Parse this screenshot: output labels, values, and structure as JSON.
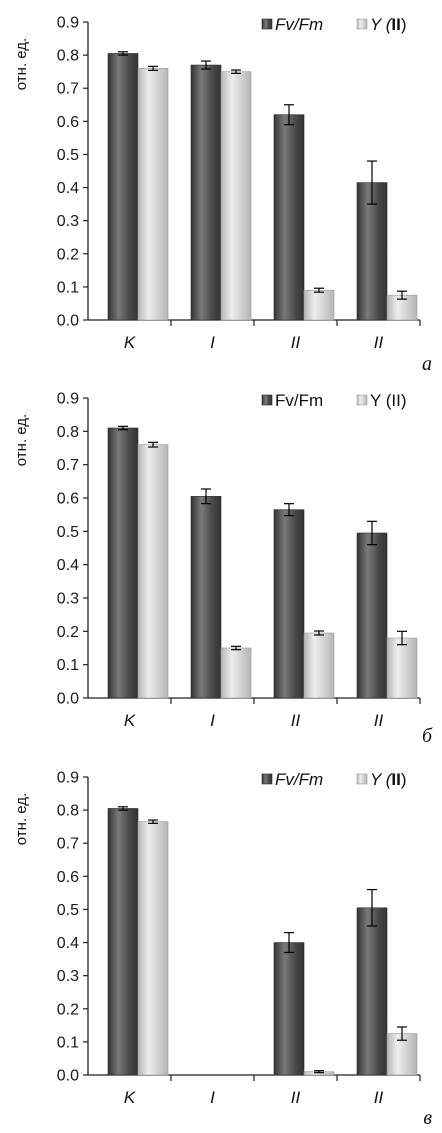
{
  "chart_data": [
    {
      "type": "bar",
      "panel_label": "а",
      "ylabel": "отн. ед.",
      "ylim": [
        0,
        0.9
      ],
      "yticks": [
        "0.0",
        "0.1",
        "0.2",
        "0.3",
        "0.4",
        "0.5",
        "0.6",
        "0.7",
        "0.8",
        "0.9"
      ],
      "categories": [
        "K",
        "I",
        "II",
        "II"
      ],
      "legend_position": "top-right",
      "series": [
        {
          "name": "Fv/Fm",
          "name_style": "italic",
          "color": "#555555",
          "values": [
            0.805,
            0.77,
            0.62,
            0.415
          ],
          "errors": [
            0.005,
            0.012,
            0.03,
            0.065
          ]
        },
        {
          "name": "Y (II)",
          "name_style": "italic-with-bold",
          "color": "#d0d0d0",
          "values": [
            0.76,
            0.75,
            0.09,
            0.075
          ],
          "errors": [
            0.006,
            0.005,
            0.006,
            0.012
          ]
        }
      ]
    },
    {
      "type": "bar",
      "panel_label": "б",
      "ylabel": "отн. ед.",
      "ylim": [
        0,
        0.9
      ],
      "yticks": [
        "0.0",
        "0.1",
        "0.2",
        "0.3",
        "0.4",
        "0.5",
        "0.6",
        "0.7",
        "0.8",
        "0.9"
      ],
      "categories": [
        "K",
        "I",
        "II",
        "II"
      ],
      "legend_position": "top-right",
      "series": [
        {
          "name": "Fv/Fm",
          "name_style": "regular",
          "color": "#555555",
          "values": [
            0.81,
            0.605,
            0.565,
            0.495
          ],
          "errors": [
            0.005,
            0.022,
            0.018,
            0.035
          ]
        },
        {
          "name": "Y (II)",
          "name_style": "regular",
          "color": "#d0d0d0",
          "values": [
            0.76,
            0.15,
            0.195,
            0.18
          ],
          "errors": [
            0.007,
            0.005,
            0.006,
            0.02
          ]
        }
      ]
    },
    {
      "type": "bar",
      "panel_label": "в",
      "ylabel": "отн. ед.",
      "ylim": [
        0,
        0.9
      ],
      "yticks": [
        "0.0",
        "0.1",
        "0.2",
        "0.3",
        "0.4",
        "0.5",
        "0.6",
        "0.7",
        "0.8",
        "0.9"
      ],
      "categories": [
        "K",
        "I",
        "II",
        "II"
      ],
      "legend_position": "top-right",
      "series": [
        {
          "name": "Fv/Fm",
          "name_style": "italic",
          "color": "#555555",
          "values": [
            0.805,
            0,
            0.4,
            0.505
          ],
          "errors": [
            0.005,
            0,
            0.03,
            0.055
          ]
        },
        {
          "name": "Y (II)",
          "name_style": "italic-with-bold",
          "color": "#d0d0d0",
          "values": [
            0.765,
            0,
            0.01,
            0.125
          ],
          "errors": [
            0.005,
            0,
            0.003,
            0.02
          ]
        }
      ]
    }
  ]
}
